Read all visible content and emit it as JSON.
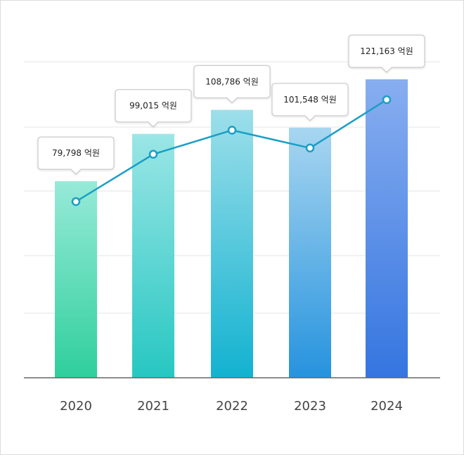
{
  "chart_data": {
    "type": "bar",
    "categories": [
      "2020",
      "2021",
      "2022",
      "2023",
      "2024"
    ],
    "series": [
      {
        "type": "bar",
        "values": [
          79798,
          99015,
          108786,
          101548,
          121163
        ]
      },
      {
        "type": "line",
        "values": [
          79798,
          99015,
          108786,
          101548,
          121163
        ]
      }
    ],
    "data_labels": [
      "79,798 억원",
      "99,015 억원",
      "108,786 억원",
      "101,548 억원",
      "121,163 억원"
    ],
    "unit": "억원",
    "ylim": [
      0,
      130000
    ],
    "grid": true,
    "legend": "none",
    "colors": {
      "bars": [
        [
          "#97ead8",
          "#2fcf9c"
        ],
        [
          "#9be6e6",
          "#27c7c2"
        ],
        [
          "#9ddfea",
          "#12b2d0"
        ],
        [
          "#a8d6f0",
          "#2693de"
        ],
        [
          "#88aef0",
          "#3575e0"
        ]
      ],
      "line": "#1a9fc4",
      "grid": "#e6e6e6",
      "axis": "#666666",
      "callout_border": "#cccccc"
    }
  }
}
